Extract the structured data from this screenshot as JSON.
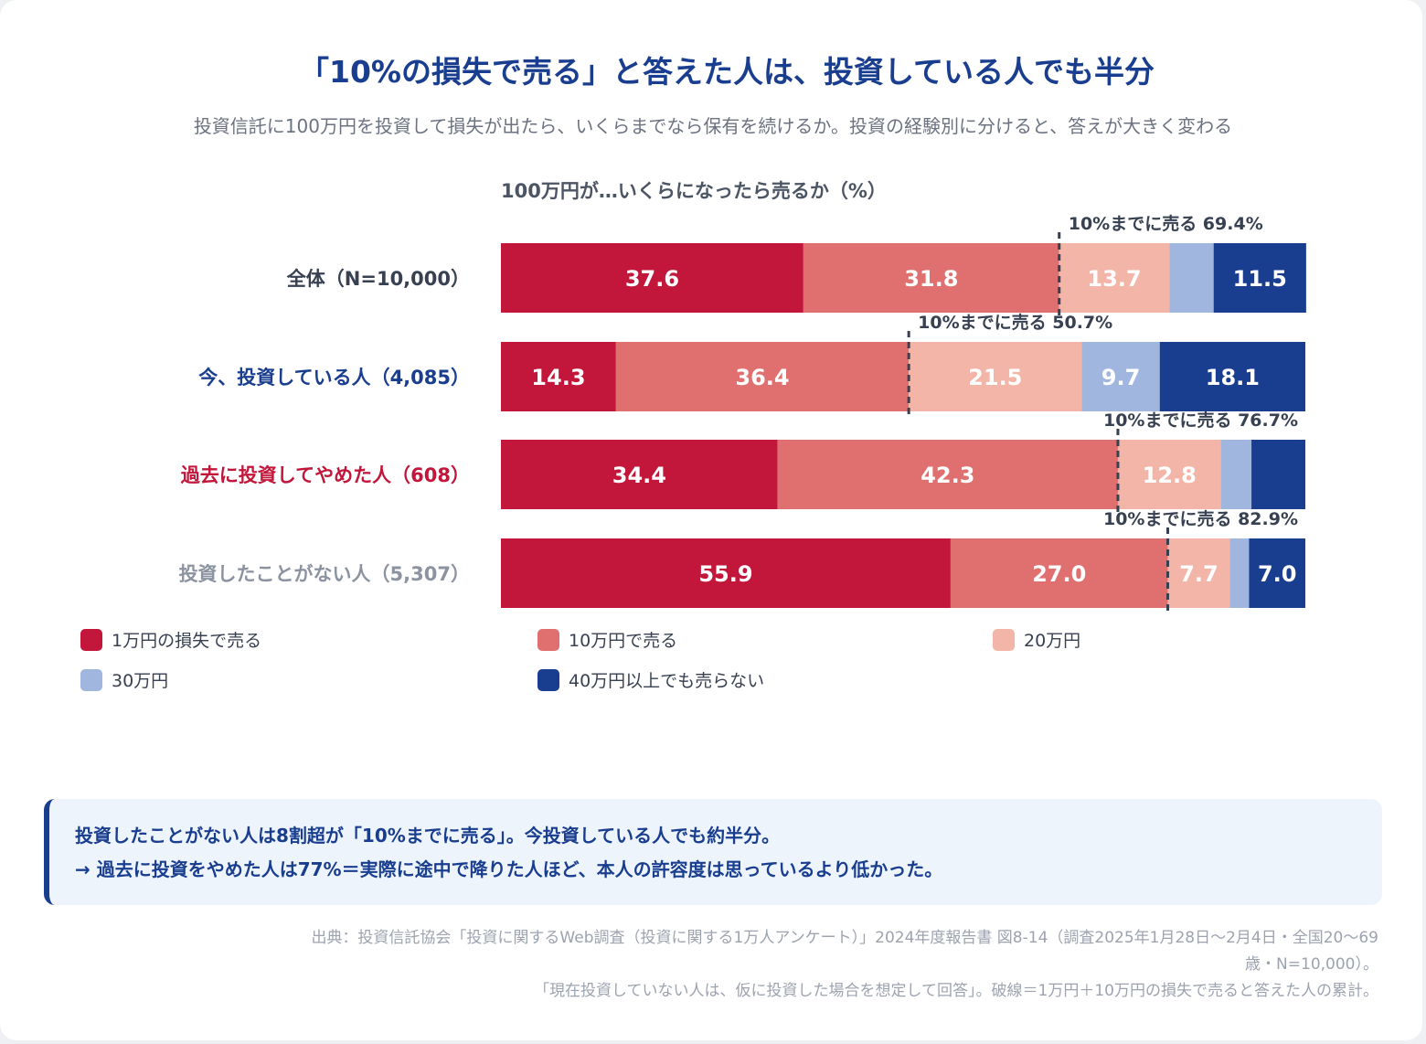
{
  "header": {
    "title": "「10%の損失で売る」と答えた人は、投資している人でも半分",
    "subtitle": "投資信託に100万円を投資して損失が出たら、いくらまでなら保有を続けるか。投資の経験別に分けると、答えが大きく変わる"
  },
  "chart_data": {
    "type": "bar",
    "orientation": "horizontal-stacked",
    "title": "100万円が…いくらになったら売るか（%）",
    "xlim": [
      0,
      100
    ],
    "categories": [
      "全体（N=10,000）",
      "今、投資している人（4,085）",
      "過去に投資してやめた人（608）",
      "投資したことがない人（5,307）"
    ],
    "category_colors": [
      "#374151",
      "#1a3e8f",
      "#c2163a",
      "#8b93a1"
    ],
    "series": [
      {
        "name": "1万円の損失で売る",
        "color": "#c2163a",
        "values": [
          37.6,
          14.3,
          34.4,
          55.9
        ]
      },
      {
        "name": "10万円で売る",
        "color": "#e07070",
        "values": [
          31.8,
          36.4,
          42.3,
          27.0
        ]
      },
      {
        "name": "20万円",
        "color": "#f2b5a8",
        "values": [
          13.7,
          21.5,
          12.8,
          7.7
        ]
      },
      {
        "name": "30万円",
        "color": "#a0b6de",
        "values": [
          5.5,
          9.7,
          3.8,
          2.4
        ]
      },
      {
        "name": "40万円以上でも売らない",
        "color": "#1a3e8f",
        "values": [
          11.5,
          18.1,
          6.7,
          7.0
        ]
      }
    ],
    "data_labels_shown": [
      [
        true,
        true,
        true,
        false,
        true
      ],
      [
        true,
        true,
        true,
        true,
        true
      ],
      [
        true,
        true,
        true,
        false,
        false
      ],
      [
        true,
        true,
        true,
        false,
        true
      ]
    ],
    "cumulative_markers": [
      {
        "label": "10%までに売る 69.4%",
        "value": 69.4
      },
      {
        "label": "10%までに売る 50.7%",
        "value": 50.7
      },
      {
        "label": "10%までに売る 76.7%",
        "value": 76.7
      },
      {
        "label": "10%までに売る 82.9%",
        "value": 82.9
      }
    ],
    "legend_position": "bottom"
  },
  "note": {
    "line1": "投資したことがない人は8割超が「10%までに売る」。今投資している人でも約半分。",
    "line2": "→ 過去に投資をやめた人は77%＝実際に途中で降りた人ほど、本人の許容度は思っているより低かった。"
  },
  "source": {
    "line1": "出典：投資信託協会「投資に関するWeb調査（投資に関する1万人アンケート）」2024年度報告書 図8-14（調査2025年1月28日〜2月4日・全国20〜69",
    "line2": "歳・N=10,000）。",
    "line3": "「現在投資していない人は、仮に投資した場合を想定して回答」。破線＝1万円＋10万円の損失で売ると答えた人の累計。"
  }
}
